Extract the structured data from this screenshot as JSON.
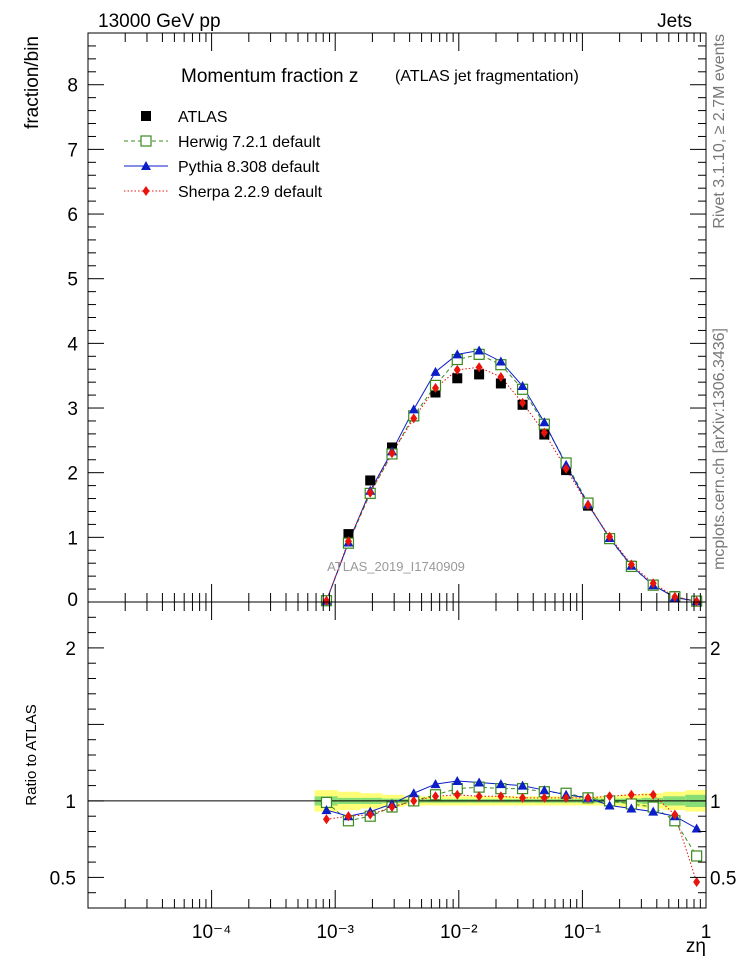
{
  "header": {
    "left": "13000 GeV pp",
    "right": "Jets"
  },
  "side_labels": {
    "rivet": "Rivet 3.1.10, ≥ 2.7M events",
    "mcplots": "mcplots.cern.ch [arXiv:1306.3436]"
  },
  "chart_data": {
    "type": "scatter",
    "title": "Momentum fraction z",
    "subtitle": "(ATLAS jet fragmentation)",
    "analysis_label": "ATLAS_2019_I1740909",
    "xlabel": "zη",
    "xscale": "log",
    "xlim": [
      1e-05,
      1
    ],
    "x_tick_labels": [
      "10⁻⁴",
      "10⁻³",
      "10⁻²",
      "10⁻¹",
      "1"
    ],
    "main": {
      "ylabel": "fraction/bin",
      "ylim": [
        0,
        8.8
      ],
      "y_tick_labels": [
        "0",
        "1",
        "2",
        "3",
        "4",
        "5",
        "6",
        "7",
        "8"
      ]
    },
    "ratio": {
      "ylabel": "Ratio to ATLAS",
      "ylim": [
        0.3,
        2.3
      ],
      "y_tick_labels": [
        "0.5",
        "1",
        "2"
      ]
    },
    "x": [
      0.00085,
      0.00128,
      0.00192,
      0.00288,
      0.00432,
      0.00648,
      0.00972,
      0.0146,
      0.0219,
      0.0328,
      0.0492,
      0.0738,
      0.111,
      0.166,
      0.249,
      0.374,
      0.56,
      0.84
    ],
    "series": [
      {
        "name": "ATLAS",
        "role": "data",
        "color": "#000000",
        "marker": "square",
        "values": [
          0.02,
          1.05,
          1.88,
          2.39,
          2.87,
          3.24,
          3.46,
          3.52,
          3.38,
          3.05,
          2.59,
          2.04,
          1.49,
          0.98,
          0.56,
          0.27,
          0.09,
          0.02
        ]
      },
      {
        "name": "Herwig 7.2.1 default",
        "role": "mc",
        "color": "#3a8a1f",
        "marker": "open-square",
        "line": "dashed",
        "values": [
          0.02,
          0.91,
          1.68,
          2.29,
          2.88,
          3.35,
          3.75,
          3.83,
          3.67,
          3.29,
          2.75,
          2.15,
          1.53,
          0.98,
          0.55,
          0.26,
          0.08,
          0.013
        ],
        "ratio": [
          0.99,
          0.87,
          0.9,
          0.96,
          1.0,
          1.04,
          1.08,
          1.09,
          1.08,
          1.08,
          1.06,
          1.05,
          1.02,
          1.0,
          0.98,
          0.96,
          0.87,
          0.64
        ]
      },
      {
        "name": "Pythia 8.308 default",
        "role": "mc",
        "color": "#0b1ec8",
        "marker": "triangle",
        "line": "solid",
        "values": [
          0.02,
          0.92,
          1.72,
          2.33,
          2.98,
          3.56,
          3.83,
          3.89,
          3.72,
          3.34,
          2.78,
          2.12,
          1.51,
          0.99,
          0.56,
          0.26,
          0.07,
          0.011
        ],
        "ratio": [
          0.94,
          0.9,
          0.93,
          0.98,
          1.05,
          1.11,
          1.13,
          1.12,
          1.11,
          1.1,
          1.07,
          1.04,
          1.02,
          0.97,
          0.95,
          0.93,
          0.9,
          0.82
        ]
      },
      {
        "name": "Sherpa 2.2.9 default",
        "role": "mc",
        "color": "#e8140c",
        "marker": "diamond",
        "line": "dotted",
        "values": [
          0.02,
          0.94,
          1.69,
          2.3,
          2.84,
          3.31,
          3.59,
          3.63,
          3.48,
          3.08,
          2.62,
          2.06,
          1.5,
          1.01,
          0.58,
          0.29,
          0.08,
          0.01
        ],
        "ratio": [
          0.88,
          0.9,
          0.91,
          0.96,
          1.0,
          1.03,
          1.04,
          1.03,
          1.03,
          1.02,
          1.02,
          1.02,
          1.02,
          1.03,
          1.04,
          1.04,
          0.91,
          0.47
        ]
      }
    ],
    "ratio_band": {
      "x_edges": [
        0.00068,
        0.00105,
        0.0016,
        0.0024,
        0.0036,
        0.0054,
        0.0081,
        0.0121,
        0.018,
        0.027,
        0.04,
        0.06,
        0.09,
        0.135,
        0.2,
        0.3,
        0.45,
        0.68,
        1.0
      ],
      "stat_halfwidth": [
        0.03,
        0.02,
        0.02,
        0.015,
        0.012,
        0.012,
        0.012,
        0.012,
        0.012,
        0.012,
        0.012,
        0.012,
        0.012,
        0.015,
        0.015,
        0.02,
        0.03,
        0.04
      ],
      "total_halfwidth": [
        0.07,
        0.06,
        0.05,
        0.04,
        0.03,
        0.03,
        0.03,
        0.03,
        0.03,
        0.03,
        0.03,
        0.03,
        0.03,
        0.03,
        0.04,
        0.05,
        0.06,
        0.07
      ],
      "stat_color": "#88dd77",
      "total_color": "#ffff77"
    }
  }
}
